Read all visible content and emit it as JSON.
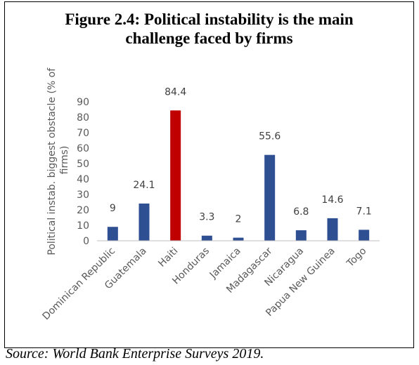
{
  "figure_title_line1": "Figure 2.4: Political instability is the main",
  "figure_title_line2": "challenge faced by firms",
  "source": "Source: World Bank Enterprise Surveys 2019.",
  "chart_data": {
    "type": "bar",
    "categories": [
      "Dominican Republic",
      "Guatemala",
      "Haiti",
      "Honduras",
      "Jamaica",
      "Madagascar",
      "Nicaragua",
      "Papua New Guinea",
      "Togo"
    ],
    "values": [
      9,
      24.1,
      84.4,
      3.3,
      2,
      55.6,
      6.8,
      14.6,
      7.1
    ],
    "data_labels": [
      "9",
      "24.1",
      "84.4",
      "3.3",
      "2",
      "55.6",
      "6.8",
      "14.6",
      "7.1"
    ],
    "ylabel_lines": [
      "Political instab. biggest obstacle (% of",
      "firms)"
    ],
    "ylim": [
      0,
      90
    ],
    "yticks": [
      0,
      10,
      20,
      30,
      40,
      50,
      60,
      70,
      80,
      90
    ],
    "colors": {
      "default": "#2f4f93",
      "highlight": "#c00000",
      "axis": "#bfbfbf"
    },
    "highlight_category": "Haiti",
    "grid": false,
    "legend": "none"
  }
}
